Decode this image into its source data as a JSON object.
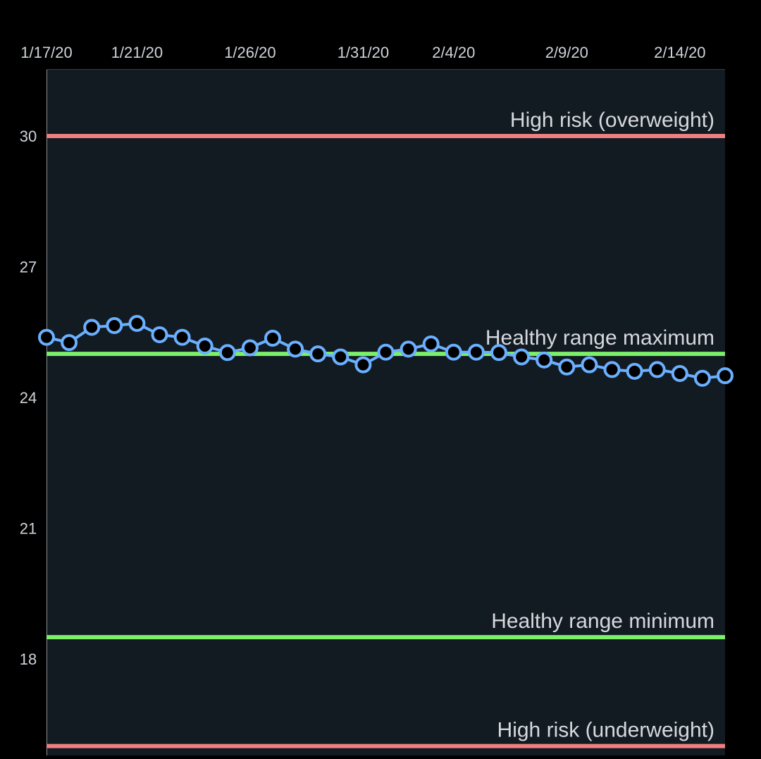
{
  "chart_data": {
    "type": "line",
    "x_dates": [
      "1/17/20",
      "1/18/20",
      "1/19/20",
      "1/20/20",
      "1/21/20",
      "1/22/20",
      "1/23/20",
      "1/24/20",
      "1/25/20",
      "1/26/20",
      "1/27/20",
      "1/28/20",
      "1/29/20",
      "1/30/20",
      "1/31/20",
      "2/1/20",
      "2/2/20",
      "2/3/20",
      "2/4/20",
      "2/5/20",
      "2/6/20",
      "2/7/20",
      "2/8/20",
      "2/9/20",
      "2/10/20",
      "2/11/20",
      "2/12/20",
      "2/13/20",
      "2/14/20",
      "2/15/20",
      "2/16/20"
    ],
    "series": [
      {
        "values": [
          25.38,
          25.26,
          25.61,
          25.65,
          25.7,
          25.44,
          25.38,
          25.18,
          25.03,
          25.14,
          25.36,
          25.11,
          25.0,
          24.93,
          24.75,
          25.04,
          25.11,
          25.23,
          25.04,
          25.04,
          25.03,
          24.93,
          24.86,
          24.7,
          24.75,
          24.64,
          24.6,
          24.64,
          24.55,
          24.44,
          24.5
        ]
      }
    ],
    "x_tick_labels": [
      "1/17/20",
      "1/21/20",
      "1/26/20",
      "1/31/20",
      "2/4/20",
      "2/9/20",
      "2/14/20"
    ],
    "x_tick_dates": [
      "1/17/20",
      "1/21/20",
      "1/26/20",
      "1/31/20",
      "2/4/20",
      "2/9/20",
      "2/14/20"
    ],
    "y_tick_labels": [
      "30",
      "27",
      "24",
      "21",
      "18"
    ],
    "y_tick_values": [
      30,
      27,
      24,
      21,
      18
    ],
    "ylim": [
      15.6,
      31.6
    ],
    "reference_lines": [
      {
        "label": "High risk (overweight)",
        "value": 30,
        "color": "#f08080"
      },
      {
        "label": "Healthy range maximum",
        "value": 25,
        "color": "#7cf06a"
      },
      {
        "label": "Healthy range minimum",
        "value": 18.5,
        "color": "#7cf06a"
      },
      {
        "label": "High risk (underweight)",
        "value": 16,
        "color": "#f08080"
      }
    ],
    "series_color": "#6ab0ff",
    "plot_background": "#121a22",
    "grid": false
  }
}
